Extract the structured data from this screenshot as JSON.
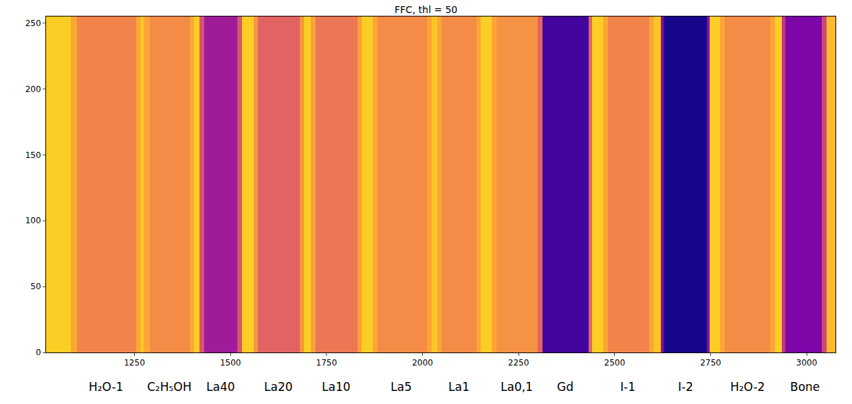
{
  "chart_data": {
    "type": "heatmap",
    "title": "FFC, thl = 50",
    "x_edges": [
      1020,
      1085,
      1100,
      1255,
      1265,
      1275,
      1290,
      1395,
      1405,
      1420,
      1432,
      1518,
      1530,
      1560,
      1572,
      1680,
      1692,
      1710,
      1722,
      1830,
      1842,
      1870,
      1882,
      2012,
      2025,
      2038,
      2050,
      2140,
      2152,
      2180,
      2192,
      2300,
      2312,
      2432,
      2442,
      2470,
      2482,
      2590,
      2602,
      2620,
      2628,
      2740,
      2748,
      2775,
      2787,
      2905,
      2917,
      2935,
      2945,
      3040,
      3052,
      3075
    ],
    "y_edges": [
      0,
      255
    ],
    "z": [
      [
        0.9,
        0.8,
        0.7,
        0.8,
        0.88,
        0.8,
        0.72,
        0.8,
        0.9,
        0.55,
        0.35,
        0.55,
        0.9,
        0.75,
        0.6,
        0.75,
        0.9,
        0.78,
        0.66,
        0.78,
        0.9,
        0.8,
        0.72,
        0.8,
        0.88,
        0.8,
        0.72,
        0.8,
        0.9,
        0.8,
        0.74,
        0.6,
        0.1,
        0.6,
        0.9,
        0.8,
        0.7,
        0.8,
        0.88,
        0.3,
        0.02,
        0.3,
        0.9,
        0.8,
        0.72,
        0.8,
        0.9,
        0.45,
        0.25,
        0.5,
        0.85
      ]
    ],
    "zlim": [
      0,
      1
    ],
    "color": "plasma",
    "xlim": [
      1020,
      3075
    ],
    "ylim": [
      0,
      255
    ],
    "xticks": [
      1250,
      1500,
      1750,
      2000,
      2250,
      2500,
      2750,
      3000
    ],
    "yticks": [
      0,
      50,
      100,
      150,
      200,
      250
    ],
    "annotations": [
      {
        "x": 1175,
        "text": "H₂O-1"
      },
      {
        "x": 1340,
        "text": "C₂H₅OH"
      },
      {
        "x": 1475,
        "text": "La40"
      },
      {
        "x": 1625,
        "text": "La20"
      },
      {
        "x": 1775,
        "text": "La10"
      },
      {
        "x": 1945,
        "text": "La5"
      },
      {
        "x": 2095,
        "text": "La1"
      },
      {
        "x": 2245,
        "text": "La0,1"
      },
      {
        "x": 2372,
        "text": "Gd"
      },
      {
        "x": 2535,
        "text": "I-1"
      },
      {
        "x": 2684,
        "text": "I-2"
      },
      {
        "x": 2845,
        "text": "H₂O-2"
      },
      {
        "x": 2995,
        "text": "Bone"
      }
    ]
  }
}
